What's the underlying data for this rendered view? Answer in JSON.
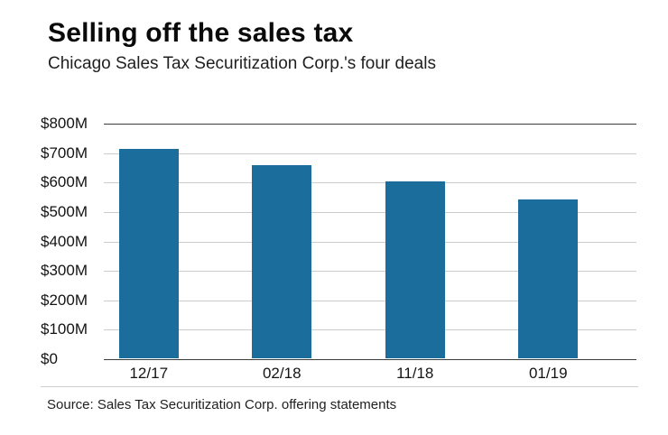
{
  "header": {
    "title": "Selling off the sales tax",
    "subtitle": "Chicago Sales Tax Securitization Corp.'s four deals"
  },
  "footer": {
    "source": "Source: Sales Tax Securitization Corp. offering statements"
  },
  "chart_data": {
    "type": "bar",
    "title": "Selling off the sales tax",
    "subtitle": "Chicago Sales Tax Securitization Corp.'s four deals",
    "categories": [
      "12/17",
      "02/18",
      "11/18",
      "01/19"
    ],
    "values": [
      710,
      655,
      600,
      540
    ],
    "values_unit": "millions USD",
    "xlabel": "",
    "ylabel": "",
    "ylim": [
      0,
      800
    ],
    "ytick_values": [
      800,
      700,
      600,
      500,
      400,
      300,
      200,
      100,
      0
    ],
    "ytick_labels": [
      "$800M",
      "$700M",
      "$600M",
      "$500M",
      "$400M",
      "$300M",
      "$200M",
      "$100M",
      "$0"
    ],
    "grid": "horizontal",
    "legend": "none",
    "bar_color": "#1b6d9c",
    "source": "Source: Sales Tax Securitization Corp. offering statements"
  },
  "colors": {
    "bar": "#1b6d9c",
    "grid_minor": "#cccccc",
    "grid_major": "#3c3c3c",
    "text": "#141414"
  }
}
